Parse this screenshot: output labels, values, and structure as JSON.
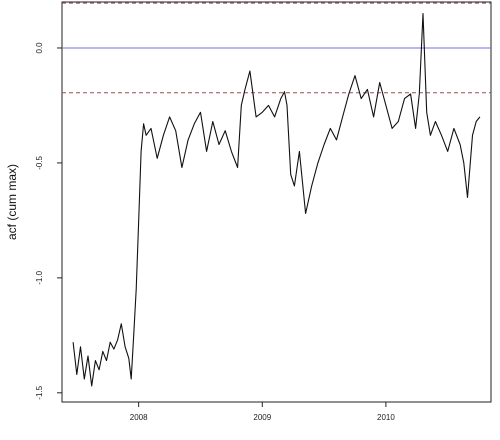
{
  "chart_data": {
    "type": "line",
    "title": "",
    "xlabel": "",
    "ylabel": "acf (cum max)",
    "xlim": [
      2007.38,
      2010.85
    ],
    "ylim": [
      -1.54,
      0.2
    ],
    "x_ticks": [
      2008,
      2009,
      2010
    ],
    "x_tick_labels": [
      "2008",
      "2009",
      "2010"
    ],
    "y_ticks": [
      0.0,
      -0.5,
      -1.0,
      -1.5
    ],
    "y_tick_labels": [
      "0.0",
      "-0.5",
      "-1.0",
      "-1.5"
    ],
    "grid": false,
    "legend": "none",
    "reference_lines": [
      {
        "y": 0.0,
        "style": "solid",
        "color": "#6e6ef0"
      },
      {
        "y": 0.195,
        "style": "dashed",
        "color": "#a04a55"
      },
      {
        "y": -0.195,
        "style": "dashed",
        "color": "#a04a55"
      }
    ],
    "series": [
      {
        "color": "#111111",
        "x": [
          2007.47,
          2007.5,
          2007.53,
          2007.56,
          2007.59,
          2007.62,
          2007.65,
          2007.68,
          2007.71,
          2007.74,
          2007.77,
          2007.8,
          2007.83,
          2007.86,
          2007.89,
          2007.92,
          2007.94,
          2007.96,
          2007.98,
          2008.0,
          2008.02,
          2008.04,
          2008.06,
          2008.1,
          2008.15,
          2008.2,
          2008.25,
          2008.3,
          2008.35,
          2008.4,
          2008.45,
          2008.5,
          2008.55,
          2008.6,
          2008.65,
          2008.7,
          2008.75,
          2008.8,
          2008.83,
          2008.86,
          2008.9,
          2008.95,
          2009.0,
          2009.05,
          2009.1,
          2009.15,
          2009.18,
          2009.2,
          2009.23,
          2009.26,
          2009.3,
          2009.35,
          2009.4,
          2009.45,
          2009.5,
          2009.55,
          2009.6,
          2009.65,
          2009.7,
          2009.75,
          2009.8,
          2009.85,
          2009.9,
          2009.95,
          2010.0,
          2010.05,
          2010.1,
          2010.15,
          2010.2,
          2010.24,
          2010.27,
          2010.3,
          2010.33,
          2010.36,
          2010.4,
          2010.45,
          2010.5,
          2010.55,
          2010.6,
          2010.63,
          2010.66,
          2010.7,
          2010.73,
          2010.76
        ],
        "y": [
          -1.28,
          -1.42,
          -1.3,
          -1.44,
          -1.34,
          -1.47,
          -1.36,
          -1.4,
          -1.32,
          -1.36,
          -1.28,
          -1.31,
          -1.27,
          -1.2,
          -1.3,
          -1.35,
          -1.44,
          -1.25,
          -1.05,
          -0.75,
          -0.45,
          -0.33,
          -0.38,
          -0.35,
          -0.48,
          -0.38,
          -0.3,
          -0.36,
          -0.52,
          -0.4,
          -0.33,
          -0.28,
          -0.45,
          -0.32,
          -0.42,
          -0.36,
          -0.45,
          -0.52,
          -0.25,
          -0.18,
          -0.1,
          -0.3,
          -0.28,
          -0.25,
          -0.3,
          -0.22,
          -0.19,
          -0.25,
          -0.55,
          -0.6,
          -0.45,
          -0.72,
          -0.6,
          -0.5,
          -0.42,
          -0.35,
          -0.4,
          -0.3,
          -0.2,
          -0.12,
          -0.22,
          -0.18,
          -0.3,
          -0.15,
          -0.25,
          -0.35,
          -0.32,
          -0.22,
          -0.2,
          -0.35,
          -0.2,
          0.15,
          -0.28,
          -0.38,
          -0.32,
          -0.38,
          -0.45,
          -0.35,
          -0.42,
          -0.5,
          -0.65,
          -0.38,
          -0.32,
          -0.3
        ]
      }
    ]
  }
}
